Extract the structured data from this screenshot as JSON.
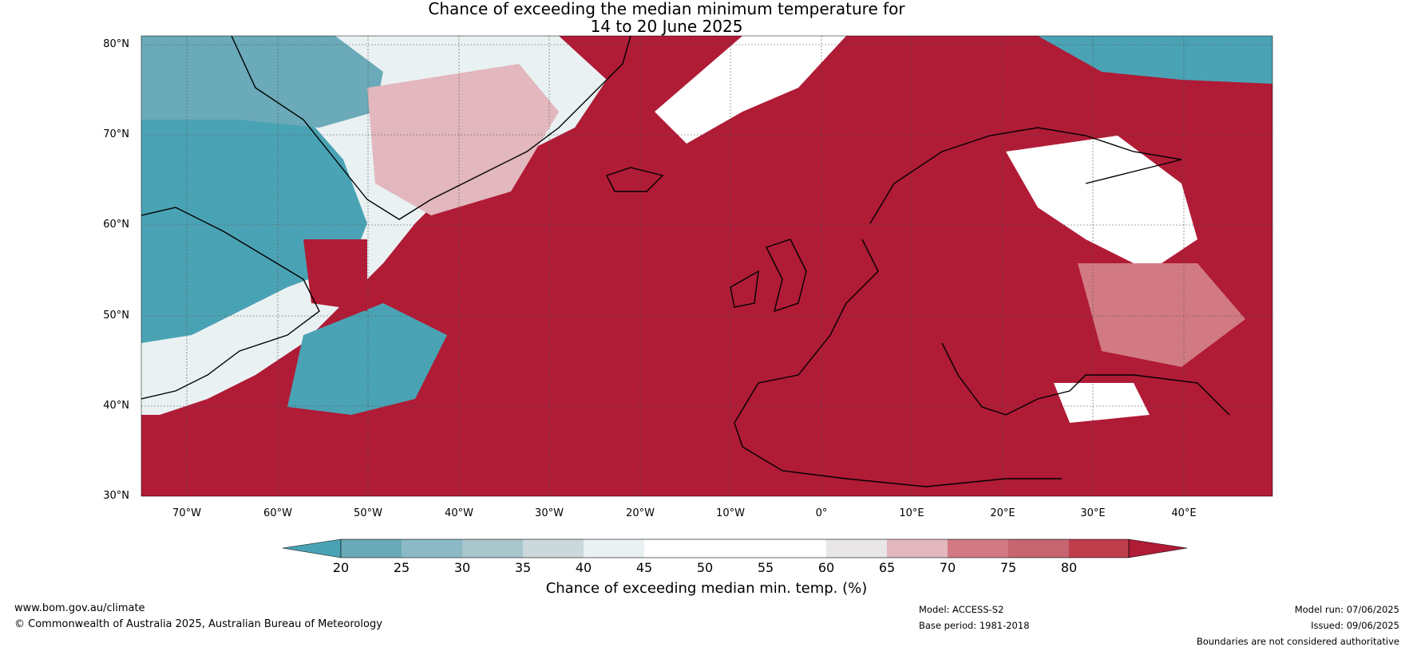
{
  "title_line1": "Chance of exceeding the median minimum temperature for",
  "title_line2": "14 to 20 June 2025",
  "lat_labels": [
    "80°N",
    "70°N",
    "60°N",
    "50°N",
    "40°N",
    "30°N"
  ],
  "lon_labels": [
    "70°W",
    "60°W",
    "50°W",
    "40°W",
    "30°W",
    "20°W",
    "10°W",
    "0°",
    "10°E",
    "20°E",
    "30°E",
    "40°E"
  ],
  "colorbar": {
    "ticks": [
      "20",
      "25",
      "30",
      "35",
      "40",
      "45",
      "50",
      "55",
      "60",
      "65",
      "70",
      "75",
      "80"
    ],
    "colors": [
      "#4aa3b4",
      "#6aaab9",
      "#8bb9c5",
      "#a9c6cd",
      "#cbd9dc",
      "#eaf1f3",
      "#ffffff",
      "#ffffff",
      "#e8e6e6",
      "#e2b7bd",
      "#d27a83",
      "#c6646f",
      "#bf3e4c",
      "#b01b36"
    ],
    "label": "Chance of exceeding median min. temp. (%)"
  },
  "footer": {
    "website": "www.bom.gov.au/climate",
    "copyright": "© Commonwealth of Australia 2025, Australian Bureau of Meteorology",
    "model": "Model: ACCESS-S2",
    "base_period": "Base period: 1981-2018",
    "model_run": "Model run: 07/06/2025",
    "issued": "Issued: 09/06/2025",
    "disclaimer": "Boundaries are not considered authoritative"
  }
}
